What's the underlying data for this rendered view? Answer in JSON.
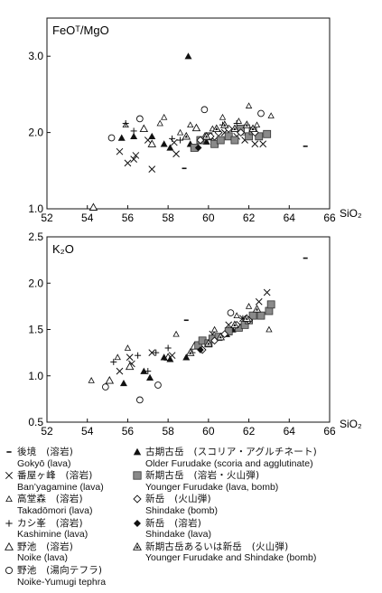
{
  "chart_data": [
    {
      "type": "scatter",
      "ylabel": "FeOᵀ/MgO",
      "xlabel": "SiO₂",
      "xlim": [
        52,
        66
      ],
      "ylim": [
        1.0,
        3.5
      ],
      "xticks": [
        "52",
        "54",
        "56",
        "58",
        "60",
        "62",
        "64",
        "66"
      ],
      "yticks": [
        "1.0",
        "2.0",
        "3.0"
      ],
      "series": [
        {
          "key": "gokyo",
          "points": [
            [
              58.8,
              1.53
            ],
            [
              64.8,
              1.82
            ]
          ]
        },
        {
          "key": "banyagamine",
          "points": [
            [
              55.6,
              1.75
            ],
            [
              56.0,
              1.6
            ],
            [
              56.3,
              1.65
            ],
            [
              56.4,
              1.7
            ],
            [
              57.0,
              1.9
            ],
            [
              57.2,
              1.52
            ],
            [
              58.3,
              1.87
            ],
            [
              58.4,
              1.72
            ],
            [
              60.3,
              1.9
            ],
            [
              60.8,
              2.0
            ],
            [
              61.4,
              1.95
            ],
            [
              61.8,
              1.9
            ],
            [
              62.3,
              1.85
            ],
            [
              62.7,
              1.85
            ]
          ]
        },
        {
          "key": "takadomori",
          "points": [
            [
              55.9,
              2.1
            ],
            [
              57.6,
              2.12
            ],
            [
              57.8,
              2.2
            ],
            [
              58.6,
              2.0
            ],
            [
              59.1,
              2.1
            ],
            [
              59.8,
              1.95
            ],
            [
              60.2,
              2.05
            ],
            [
              60.7,
              2.2
            ],
            [
              61.5,
              2.15
            ],
            [
              61.7,
              2.0
            ],
            [
              62.0,
              2.35
            ],
            [
              62.4,
              2.1
            ],
            [
              63.1,
              2.22
            ]
          ]
        },
        {
          "key": "kashimine",
          "points": [
            [
              55.9,
              2.12
            ],
            [
              56.3,
              2.02
            ],
            [
              58.2,
              1.92
            ],
            [
              58.6,
              1.9
            ],
            [
              60.7,
              2.1
            ],
            [
              61.4,
              2.12
            ],
            [
              61.9,
              2.1
            ]
          ]
        },
        {
          "key": "noike",
          "points": [
            [
              54.3,
              1.02
            ],
            [
              56.8,
              2.05
            ],
            [
              57.2,
              1.85
            ],
            [
              59.4,
              2.06
            ]
          ]
        },
        {
          "key": "noike_yumugi",
          "points": [
            [
              55.2,
              1.93
            ],
            [
              56.6,
              2.18
            ],
            [
              59.8,
              2.3
            ],
            [
              62.6,
              2.25
            ]
          ]
        },
        {
          "key": "older_furudake",
          "points": [
            [
              55.7,
              1.93
            ],
            [
              56.3,
              1.95
            ],
            [
              57.2,
              1.95
            ],
            [
              57.8,
              1.85
            ],
            [
              58.1,
              1.8
            ],
            [
              59.0,
              3.0
            ],
            [
              59.1,
              1.85
            ],
            [
              59.9,
              1.88
            ],
            [
              60.3,
              1.85
            ]
          ]
        },
        {
          "key": "younger_furudake",
          "points": [
            [
              59.3,
              1.8
            ],
            [
              59.6,
              1.9
            ],
            [
              60.0,
              1.95
            ],
            [
              60.3,
              1.85
            ],
            [
              60.6,
              1.9
            ],
            [
              61.0,
              1.95
            ],
            [
              61.3,
              1.9
            ],
            [
              61.6,
              2.05
            ],
            [
              62.0,
              1.95
            ],
            [
              62.2,
              2.02
            ],
            [
              62.5,
              1.95
            ],
            [
              62.9,
              1.98
            ]
          ]
        },
        {
          "key": "shindake_bomb",
          "points": [
            [
              59.6,
              1.9
            ],
            [
              60.1,
              1.95
            ],
            [
              60.5,
              2.0
            ],
            [
              61.0,
              2.05
            ],
            [
              61.6,
              2.0
            ],
            [
              62.3,
              2.0
            ]
          ]
        },
        {
          "key": "shindake_lava",
          "points": [
            [
              59.5,
              1.8
            ]
          ]
        },
        {
          "key": "younger_furudake_shindake",
          "points": [
            [
              58.9,
              1.95
            ],
            [
              59.9,
              1.95
            ],
            [
              60.4,
              2.05
            ],
            [
              60.8,
              2.1
            ],
            [
              61.3,
              2.05
            ],
            [
              61.9,
              2.1
            ],
            [
              62.2,
              2.05
            ]
          ]
        }
      ]
    },
    {
      "type": "scatter",
      "ylabel": "K₂O",
      "xlabel": "SiO₂",
      "xlim": [
        52,
        66
      ],
      "ylim": [
        0.5,
        2.5
      ],
      "xticks": [
        "52",
        "54",
        "56",
        "58",
        "60",
        "62",
        "64",
        "66"
      ],
      "yticks": [
        "0.5",
        "1.0",
        "1.5",
        "2.0",
        "2.5"
      ],
      "series": [
        {
          "key": "gokyo",
          "points": [
            [
              58.9,
              1.6
            ],
            [
              64.8,
              2.27
            ]
          ]
        },
        {
          "key": "banyagamine",
          "points": [
            [
              55.6,
              1.05
            ],
            [
              56.1,
              1.2
            ],
            [
              56.2,
              1.13
            ],
            [
              57.2,
              1.25
            ],
            [
              58.2,
              1.22
            ],
            [
              60.2,
              1.45
            ],
            [
              61.0,
              1.55
            ],
            [
              61.7,
              1.62
            ],
            [
              62.5,
              1.8
            ],
            [
              62.9,
              1.9
            ]
          ]
        },
        {
          "key": "takadomori",
          "points": [
            [
              54.2,
              0.95
            ],
            [
              55.5,
              1.2
            ],
            [
              56.0,
              1.3
            ],
            [
              58.4,
              1.45
            ],
            [
              60.3,
              1.5
            ],
            [
              61.4,
              1.65
            ],
            [
              62.0,
              1.75
            ],
            [
              63.0,
              1.5
            ]
          ]
        },
        {
          "key": "kashimine",
          "points": [
            [
              55.3,
              1.15
            ],
            [
              56.5,
              1.22
            ],
            [
              57.0,
              1.05
            ],
            [
              57.4,
              1.25
            ],
            [
              58.0,
              1.3
            ],
            [
              59.2,
              1.25
            ],
            [
              61.0,
              1.5
            ],
            [
              61.7,
              1.62
            ]
          ]
        },
        {
          "key": "noike",
          "points": [
            [
              55.1,
              0.95
            ],
            [
              56.1,
              1.1
            ],
            [
              58.0,
              1.2
            ],
            [
              59.3,
              1.32
            ]
          ]
        },
        {
          "key": "noike_yumugi",
          "points": [
            [
              54.9,
              0.88
            ],
            [
              56.6,
              0.74
            ],
            [
              57.5,
              0.9
            ],
            [
              61.1,
              1.68
            ]
          ]
        },
        {
          "key": "older_furudake",
          "points": [
            [
              55.8,
              0.92
            ],
            [
              56.8,
              1.05
            ],
            [
              57.1,
              0.98
            ],
            [
              57.8,
              1.2
            ],
            [
              58.1,
              1.18
            ],
            [
              58.9,
              1.2
            ],
            [
              60.9,
              1.45
            ],
            [
              61.2,
              1.5
            ]
          ]
        },
        {
          "key": "younger_furudake",
          "points": [
            [
              59.5,
              1.33
            ],
            [
              59.7,
              1.38
            ],
            [
              60.0,
              1.35
            ],
            [
              60.2,
              1.4
            ],
            [
              60.5,
              1.42
            ],
            [
              61.0,
              1.48
            ],
            [
              61.5,
              1.52
            ],
            [
              61.8,
              1.55
            ],
            [
              62.0,
              1.6
            ],
            [
              62.2,
              1.65
            ],
            [
              62.6,
              1.65
            ],
            [
              63.0,
              1.7
            ],
            [
              63.1,
              1.77
            ]
          ]
        },
        {
          "key": "shindake_bomb",
          "points": [
            [
              59.7,
              1.28
            ],
            [
              60.3,
              1.38
            ],
            [
              60.8,
              1.45
            ],
            [
              61.4,
              1.55
            ],
            [
              62.0,
              1.6
            ]
          ]
        },
        {
          "key": "shindake_lava",
          "points": [
            [
              59.6,
              1.28
            ]
          ]
        },
        {
          "key": "younger_furudake_shindake",
          "points": [
            [
              59.1,
              1.25
            ],
            [
              60.0,
              1.35
            ],
            [
              60.6,
              1.42
            ],
            [
              61.3,
              1.55
            ],
            [
              61.9,
              1.62
            ],
            [
              62.4,
              1.72
            ]
          ]
        }
      ]
    }
  ],
  "legend": {
    "left": [
      {
        "key": "gokyo",
        "symbol_name": "short-bar",
        "ja": "後境　(溶岩)",
        "en": "Gokyō (lava)"
      },
      {
        "key": "banyagamine",
        "symbol_name": "cross",
        "ja": "番屋ヶ峰　(溶岩)",
        "en": "Ban’yagamine (lava)"
      },
      {
        "key": "takadomori",
        "symbol_name": "small-open-triangle",
        "ja": "高堂森　(溶岩)",
        "en": "Takadōmori (lava)"
      },
      {
        "key": "kashimine",
        "symbol_name": "plus",
        "ja": "カシ峯　(溶岩)",
        "en": "Kashimine (lava)"
      },
      {
        "key": "noike",
        "symbol_name": "open-triangle",
        "ja": "野池　(溶岩)",
        "en": "Noike (lava)"
      },
      {
        "key": "noike_yumugi",
        "symbol_name": "open-circle",
        "ja": "野池　(湯向テフラ)",
        "en": "Noike-Yumugi tephra"
      }
    ],
    "right": [
      {
        "key": "older_furudake",
        "symbol_name": "filled-triangle",
        "ja": "古期古岳　(スコリア・アグルチネート)",
        "en": "Older Furudake (scoria and agglutinate)"
      },
      {
        "key": "younger_furudake",
        "symbol_name": "gray-square",
        "ja": "新期古岳　(溶岩・火山弾)",
        "en": "Younger Furudake (lava, bomb)"
      },
      {
        "key": "shindake_bomb",
        "symbol_name": "open-diamond",
        "ja": "新岳　(火山弾)",
        "en": "Shindake (bomb)"
      },
      {
        "key": "shindake_lava",
        "symbol_name": "filled-diamond",
        "ja": "新岳　(溶岩)",
        "en": "Shindake (lava)"
      },
      {
        "key": "younger_furudake_shindake",
        "symbol_name": "triangle-in-triangle",
        "ja": "新期古岳あるいは新岳　(火山弾)",
        "en": "Younger Furudake and Shindake (bomb)"
      }
    ]
  }
}
